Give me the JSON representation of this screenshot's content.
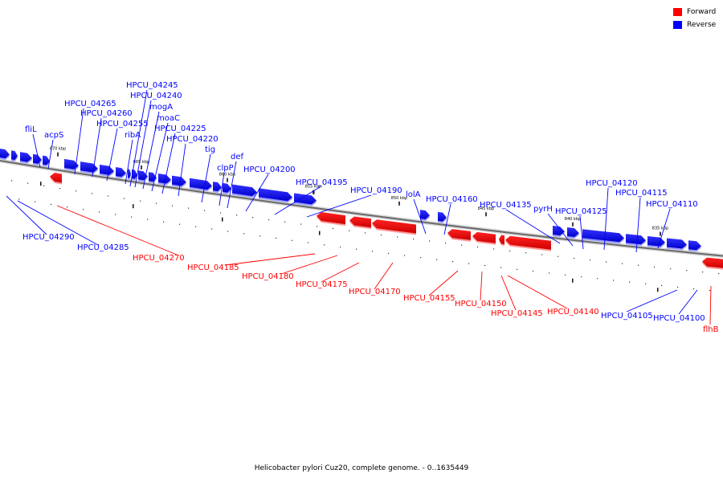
{
  "caption": "Helicobacter pylori Cuz20, complete genome. - 0..1635449",
  "legend": {
    "placement": "top-right",
    "items": [
      {
        "label": "Forward",
        "color": "#ff0000"
      },
      {
        "label": "Reverse",
        "color": "#0000ff"
      }
    ]
  },
  "colors": {
    "forward": "#ff0000",
    "reverse": "#0000ff",
    "backbone": "#808080"
  },
  "ticks": [
    "870 kbp",
    "865 kbp",
    "860 kbp",
    "855 kbp",
    "850 kbp",
    "845 kbp",
    "840 kbp",
    "835 kbp"
  ],
  "genes_reverse": [
    "fliL",
    "acpS",
    "HPCU_04265",
    "HPCU_04260",
    "HPCU_04255",
    "ribA",
    "HPCU_04245",
    "HPCU_04240",
    "mogA",
    "moaC",
    "HPCU_04225",
    "HPCU_04220",
    "tig",
    "clpP",
    "def",
    "HPCU_04200",
    "HPCU_04195",
    "HPCU_04190",
    "lolA",
    "HPCU_04160",
    "HPCU_04135",
    "pyrH",
    "HPCU_04125",
    "HPCU_04120",
    "HPCU_04115",
    "HPCU_04110",
    "HPCU_04290",
    "HPCU_04285",
    "HPCU_04105",
    "HPCU_04100"
  ],
  "genes_forward": [
    "HPCU_04270",
    "HPCU_04185",
    "HPCU_04180",
    "HPCU_04175",
    "HPCU_04170",
    "HPCU_04155",
    "HPCU_04150",
    "HPCU_04145",
    "HPCU_04140",
    "flhB"
  ]
}
